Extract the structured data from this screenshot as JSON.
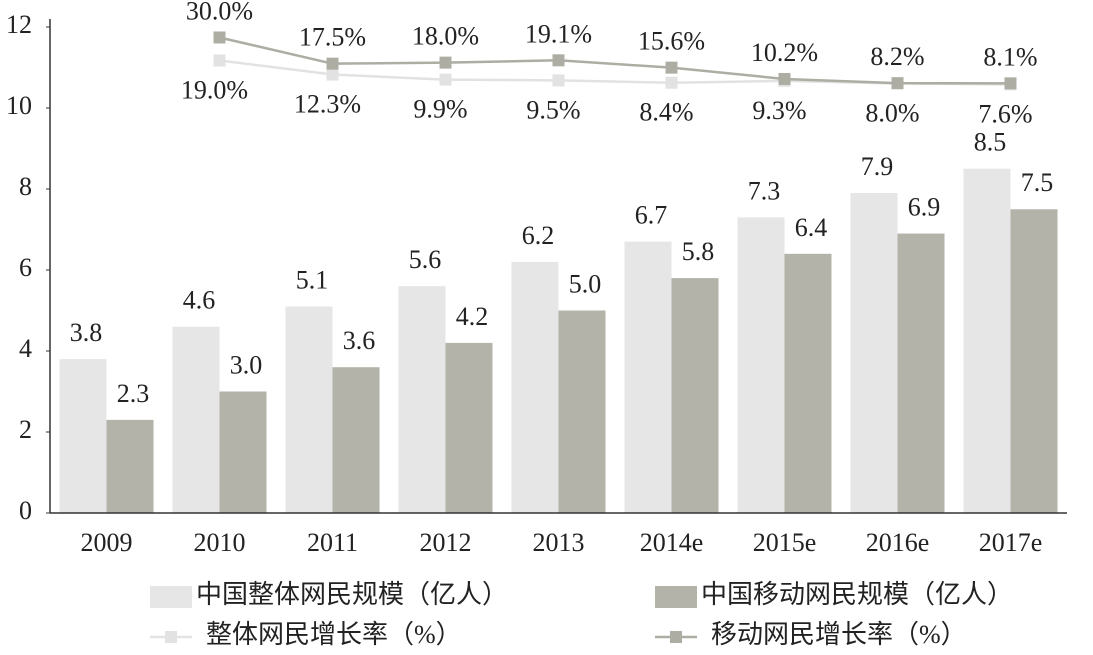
{
  "chart_data": {
    "type": "bar",
    "categories": [
      "2009",
      "2010",
      "2011",
      "2012",
      "2013",
      "2014e",
      "2015e",
      "2016e",
      "2017e"
    ],
    "ylim": [
      0,
      12
    ],
    "yticks": [
      0,
      2,
      4,
      6,
      8,
      10,
      12
    ],
    "y2lim": [
      -197,
      35
    ],
    "series": [
      {
        "name": "中国整体网民规模（亿人）",
        "color": "#e6e6e6",
        "type": "bar",
        "values": [
          3.8,
          4.6,
          5.1,
          5.6,
          6.2,
          6.7,
          7.3,
          7.9,
          8.5
        ],
        "value_labels": [
          "3.8",
          "4.6",
          "5.1",
          "5.6",
          "6.2",
          "6.7",
          "7.3",
          "7.9",
          "8.5"
        ]
      },
      {
        "name": "中国移动网民规模（亿人）",
        "color": "#b3b3a9",
        "type": "bar",
        "values": [
          2.3,
          3.0,
          3.6,
          4.2,
          5.0,
          5.8,
          6.4,
          6.9,
          7.5
        ],
        "value_labels": [
          "2.3",
          "3.0",
          "3.6",
          "4.2",
          "5.0",
          "5.8",
          "6.4",
          "6.9",
          "7.5"
        ]
      },
      {
        "name": "整体网民增长率（%）",
        "color": "#e2e2e2",
        "type": "line",
        "axis": "y2",
        "values": [
          null,
          19.0,
          12.3,
          9.9,
          9.5,
          8.4,
          9.3,
          8.0,
          7.6
        ],
        "value_labels": [
          null,
          "19.0%",
          "12.3%",
          "9.9%",
          "9.5%",
          "8.4%",
          "9.3%",
          "8.0%",
          "7.6%"
        ]
      },
      {
        "name": "移动网民增长率（%）",
        "color": "#adada4",
        "type": "line",
        "axis": "y2",
        "values": [
          null,
          30.0,
          17.5,
          18.0,
          19.1,
          15.6,
          10.2,
          8.2,
          8.1
        ],
        "value_labels": [
          null,
          "30.0%",
          "17.5%",
          "18.0%",
          "19.1%",
          "15.6%",
          "10.2%",
          "8.2%",
          "8.1%"
        ]
      }
    ]
  }
}
